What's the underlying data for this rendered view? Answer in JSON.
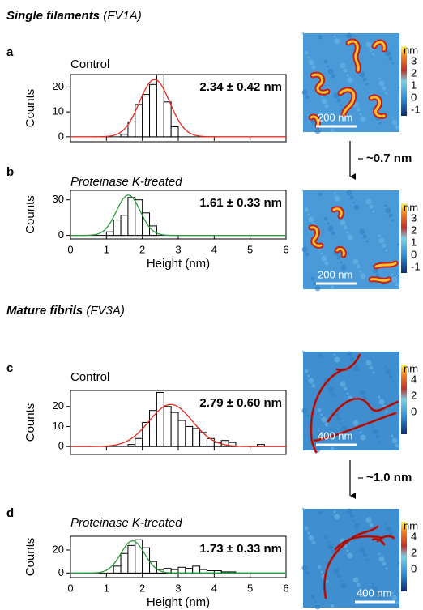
{
  "sections": [
    {
      "title": "Single filaments",
      "code": "(FV1A)"
    },
    {
      "title": "Mature fibrils",
      "code": "(FV3A)"
    }
  ],
  "chart_data": [
    {
      "type": "histogram",
      "panel": "a",
      "label": "Control",
      "label_italic": false,
      "ylabel": "Counts",
      "bins": [
        1.4,
        1.6,
        1.8,
        2.0,
        2.2,
        2.4,
        2.6,
        2.8,
        3.0
      ],
      "counts": [
        1,
        6,
        13,
        17,
        21,
        25,
        14,
        4
      ],
      "color": "#ffffff",
      "edgecolor": "#000000",
      "xlim": [
        0,
        6
      ],
      "xticks": [
        0,
        1,
        2,
        3,
        4,
        5,
        6
      ],
      "xtick_labels": false,
      "ylim": [
        -2,
        25
      ],
      "yticks": [
        0,
        10,
        20
      ],
      "fit": {
        "mean": 2.34,
        "sd": 0.42,
        "peak": 23,
        "color": "#e8291c"
      },
      "annotation": "2.34 ± 0.42 nm"
    },
    {
      "type": "histogram",
      "panel": "b",
      "label": "Proteinase K-treated",
      "label_italic": true,
      "ylabel": "Counts",
      "xlabel": "Height (nm)",
      "bins": [
        1.0,
        1.2,
        1.4,
        1.6,
        1.8,
        2.0,
        2.2,
        2.4
      ],
      "counts": [
        3,
        13,
        17,
        32,
        30,
        19,
        8
      ],
      "color": "#ffffff",
      "edgecolor": "#000000",
      "xlim": [
        0,
        6
      ],
      "xticks": [
        0,
        1,
        2,
        3,
        4,
        5,
        6
      ],
      "xtick_labels": true,
      "ylim": [
        -3,
        38
      ],
      "yticks": [
        0,
        30
      ],
      "fit": {
        "mean": 1.61,
        "sd": 0.33,
        "peak": 34,
        "color": "#2a9a3a"
      },
      "annotation": "1.61 ± 0.33 nm"
    },
    {
      "type": "histogram",
      "panel": "c",
      "label": "Control",
      "label_italic": false,
      "ylabel": "Counts",
      "bins": [
        1.6,
        1.8,
        2.0,
        2.2,
        2.4,
        2.6,
        2.8,
        3.0,
        3.2,
        3.4,
        3.6,
        3.8,
        4.0,
        4.2,
        4.4,
        4.6,
        4.8,
        5.0,
        5.2,
        5.4,
        5.6
      ],
      "counts": [
        1,
        4,
        12,
        18,
        27,
        20,
        17,
        13,
        10,
        9,
        7,
        4,
        2,
        3,
        2,
        0,
        0,
        0,
        1,
        0
      ],
      "color": "#ffffff",
      "edgecolor": "#000000",
      "xlim": [
        0,
        6
      ],
      "xticks": [
        0,
        1,
        2,
        3,
        4,
        5,
        6
      ],
      "xtick_labels": false,
      "ylim": [
        -4,
        28
      ],
      "yticks": [
        0,
        10,
        20
      ],
      "fit": {
        "mean": 2.79,
        "sd": 0.6,
        "peak": 21,
        "color": "#e8291c"
      },
      "annotation": "2.79 ± 0.60 nm"
    },
    {
      "type": "histogram",
      "panel": "d",
      "label": "Proteinase K-treated",
      "label_italic": true,
      "ylabel": "Counts",
      "xlabel": "Height (nm)",
      "bins": [
        1.2,
        1.4,
        1.6,
        1.8,
        2.0,
        2.2,
        2.4,
        2.6,
        2.8,
        3.0,
        3.2,
        3.4,
        3.6,
        3.8,
        4.0,
        4.2,
        4.4,
        4.6
      ],
      "counts": [
        6,
        17,
        24,
        29,
        22,
        10,
        3,
        4,
        3,
        5,
        4,
        6,
        3,
        2,
        2,
        1,
        1
      ],
      "color": "#ffffff",
      "edgecolor": "#000000",
      "xlim": [
        0,
        6
      ],
      "xticks": [
        0,
        1,
        2,
        3,
        4,
        5,
        6
      ],
      "xtick_labels": true,
      "ylim": [
        -4,
        32
      ],
      "yticks": [
        0,
        20
      ],
      "fit": {
        "mean": 1.73,
        "sd": 0.33,
        "peak": 28,
        "color": "#2a9a3a"
      },
      "annotation": "1.73 ± 0.33 nm"
    }
  ],
  "images": [
    {
      "unit": "nm",
      "colorbar_labels": [
        "3",
        "2",
        "1",
        "0",
        "-1"
      ],
      "scale_bar": "200 nm"
    },
    {
      "unit": "nm",
      "colorbar_labels": [
        "3",
        "2",
        "1",
        "0",
        "-1"
      ],
      "scale_bar": "200 nm"
    },
    {
      "unit": "nm",
      "colorbar_labels": [
        "4",
        "2",
        "0"
      ],
      "scale_bar": "400 nm"
    },
    {
      "unit": "nm",
      "colorbar_labels": [
        "4",
        "2",
        "0"
      ],
      "scale_bar": "400 nm"
    }
  ],
  "arrows": [
    "~0.7 nm",
    "~1.0 nm"
  ]
}
